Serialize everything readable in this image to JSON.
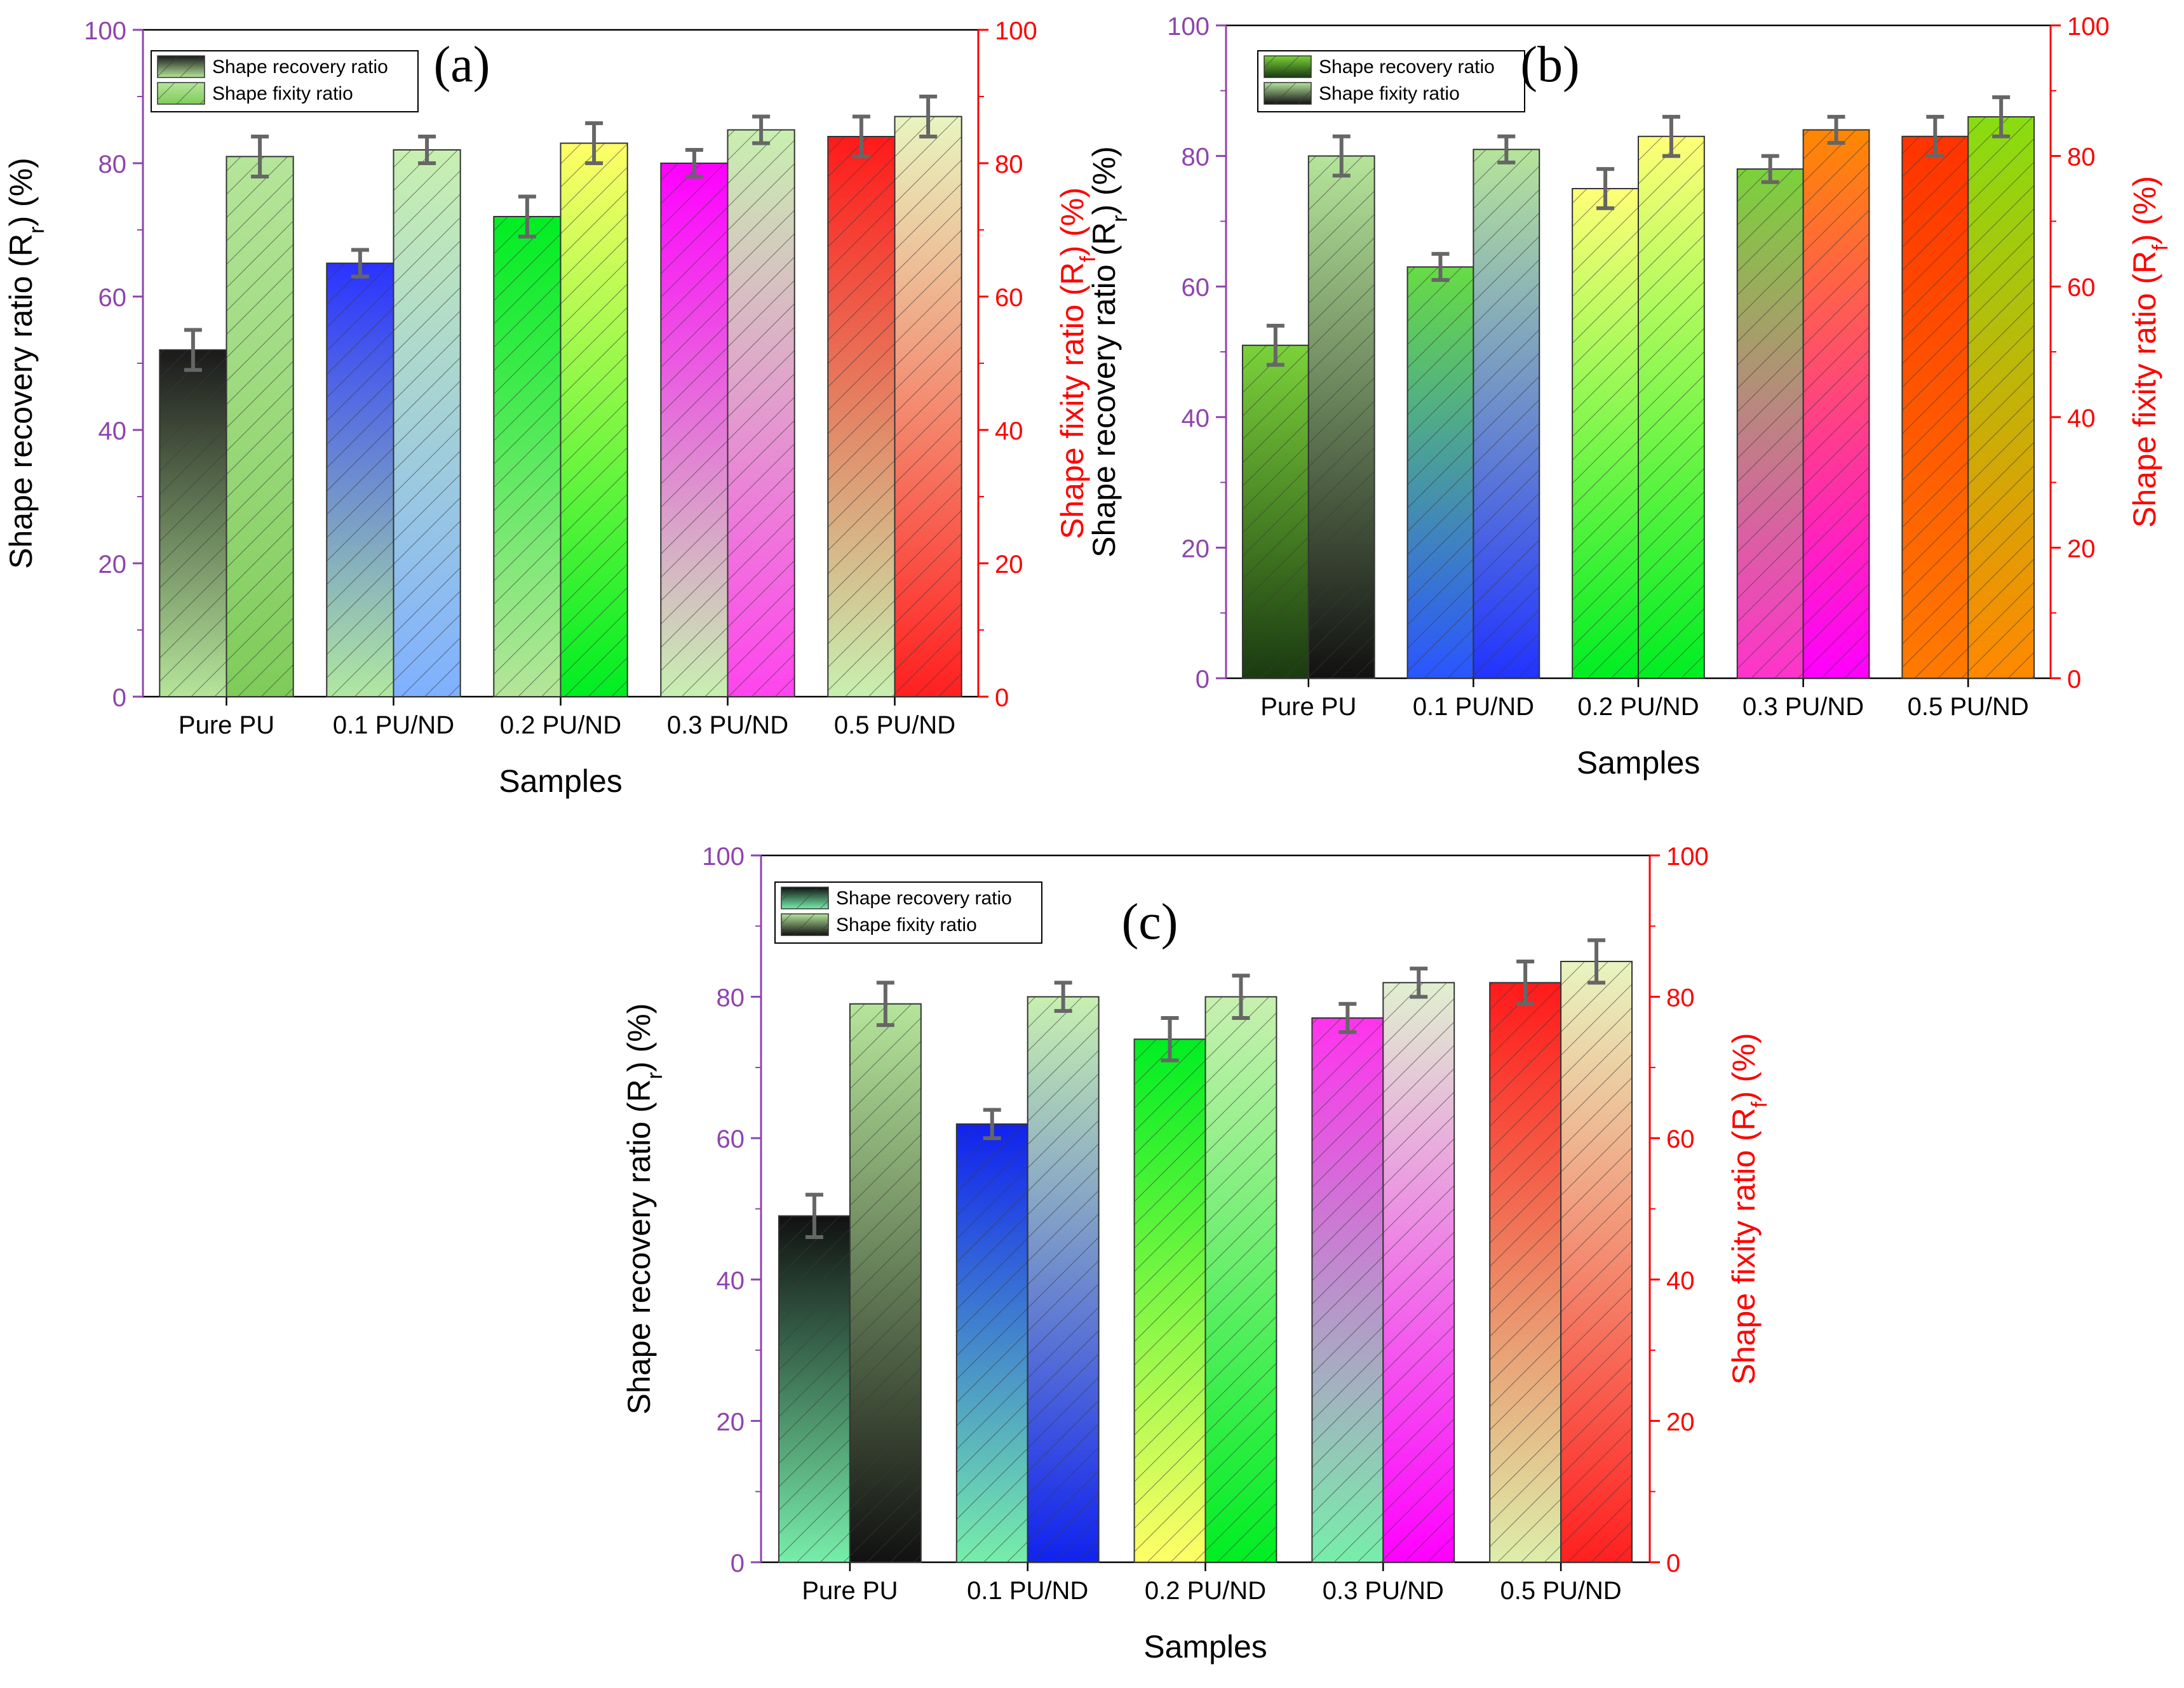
{
  "chart_data": [
    {
      "type": "bar",
      "panel_label": "(a)",
      "categories": [
        "Pure PU",
        "0.1 PU/ND",
        "0.2 PU/ND",
        "0.3 PU/ND",
        "0.5 PU/ND"
      ],
      "series": [
        {
          "name": "Shape recovery ratio",
          "values": [
            52,
            65,
            72,
            80,
            84
          ],
          "errors": [
            3,
            2,
            3,
            2,
            3
          ]
        },
        {
          "name": "Shape fixity ratio",
          "values": [
            81,
            82,
            83,
            85,
            87
          ],
          "errors": [
            3,
            2,
            3,
            2,
            3
          ]
        }
      ],
      "xlabel": "Samples",
      "ylabel_left": "Shape recovery ratio (R",
      "ylabel_right": "Shape fixity ratio (R",
      "ylabel_sub": "f",
      "ylabel_suffix": ") (%)",
      "ylim": [
        0,
        100
      ],
      "yticks": [
        "0",
        "20",
        "40",
        "60",
        "80",
        "100"
      ],
      "legend_position": "top-left",
      "left_axis_color": "#8e44ad",
      "right_axis_color": "#ff0000",
      "recovery_colors": [
        [
          "#1a1a1a",
          "#b5e59a"
        ],
        [
          "#2a33ff",
          "#b0e8a0"
        ],
        [
          "#00ee22",
          "#b5e59a"
        ],
        [
          "#ff00ff",
          "#c8f0b0"
        ],
        [
          "#ff1a1a",
          "#c8f0b0"
        ]
      ],
      "fixity_colors": [
        [
          "#b5e59a",
          "#7fcc5a"
        ],
        [
          "#c8f0b0",
          "#7fb0ff"
        ],
        [
          "#ffff66",
          "#00ee22"
        ],
        [
          "#c8f0b0",
          "#ff44ee"
        ],
        [
          "#e8f5c0",
          "#ff2020"
        ]
      ]
    },
    {
      "type": "bar",
      "panel_label": "(b)",
      "categories": [
        "Pure PU",
        "0.1 PU/ND",
        "0.2 PU/ND",
        "0.3 PU/ND",
        "0.5 PU/ND"
      ],
      "series": [
        {
          "name": "Shape recovery ratio",
          "values": [
            51,
            63,
            75,
            78,
            83
          ],
          "errors": [
            3,
            2,
            3,
            2,
            3
          ]
        },
        {
          "name": "Shape fixity ratio",
          "values": [
            80,
            81,
            83,
            84,
            86
          ],
          "errors": [
            3,
            2,
            3,
            2,
            3
          ]
        }
      ],
      "xlabel": "Samples",
      "ylabel_left": "Shape recovery ratio (R",
      "ylabel_right": "Shape fixity ratio (R",
      "ylabel_sub": "f",
      "ylabel_suffix": ") (%)",
      "ylim": [
        0,
        100
      ],
      "yticks": [
        "0",
        "20",
        "40",
        "60",
        "80",
        "100"
      ],
      "legend_position": "top-left",
      "left_axis_color": "#8e44ad",
      "right_axis_color": "#ff0000",
      "recovery_colors": [
        [
          "#7bd23a",
          "#1a3a10"
        ],
        [
          "#66dd44",
          "#2a55ff"
        ],
        [
          "#ffff77",
          "#00ee22"
        ],
        [
          "#7bd23a",
          "#ff33cc"
        ],
        [
          "#ff3300",
          "#ff7a00"
        ]
      ],
      "fixity_colors": [
        [
          "#b5e59a",
          "#111111"
        ],
        [
          "#b5e59a",
          "#2233ff"
        ],
        [
          "#ffff77",
          "#00ee22"
        ],
        [
          "#ff8800",
          "#ff00ff"
        ],
        [
          "#88dd11",
          "#ff8800"
        ]
      ]
    },
    {
      "type": "bar",
      "panel_label": "(c)",
      "categories": [
        "Pure PU",
        "0.1 PU/ND",
        "0.2 PU/ND",
        "0.3 PU/ND",
        "0.5 PU/ND"
      ],
      "series": [
        {
          "name": "Shape recovery ratio",
          "values": [
            49,
            62,
            74,
            77,
            82
          ],
          "errors": [
            3,
            2,
            3,
            2,
            3
          ]
        },
        {
          "name": "Shape fixity ratio",
          "values": [
            79,
            80,
            80,
            82,
            85
          ],
          "errors": [
            3,
            2,
            3,
            2,
            3
          ]
        }
      ],
      "xlabel": "Samples",
      "ylabel_left": "Shape recovery ratio (R",
      "ylabel_right": "Shape fixity ratio (R",
      "ylabel_sub": "f",
      "ylabel_suffix": ") (%)",
      "ylim": [
        0,
        100
      ],
      "yticks": [
        "0",
        "20",
        "40",
        "60",
        "80",
        "100"
      ],
      "legend_position": "top-left",
      "left_axis_color": "#8e44ad",
      "right_axis_color": "#ff0000",
      "recovery_colors": [
        [
          "#111111",
          "#77eeaa"
        ],
        [
          "#1122ee",
          "#77eeaa"
        ],
        [
          "#00ee22",
          "#ffff66"
        ],
        [
          "#ff33ee",
          "#77eeaa"
        ],
        [
          "#ff1a1a",
          "#ddeeaa"
        ]
      ],
      "fixity_colors": [
        [
          "#b5e59a",
          "#111111"
        ],
        [
          "#c8f0b0",
          "#1122ee"
        ],
        [
          "#c8f0b0",
          "#00ee22"
        ],
        [
          "#e0f0d0",
          "#ff00ff"
        ],
        [
          "#e8f5c0",
          "#ff2020"
        ]
      ]
    }
  ]
}
